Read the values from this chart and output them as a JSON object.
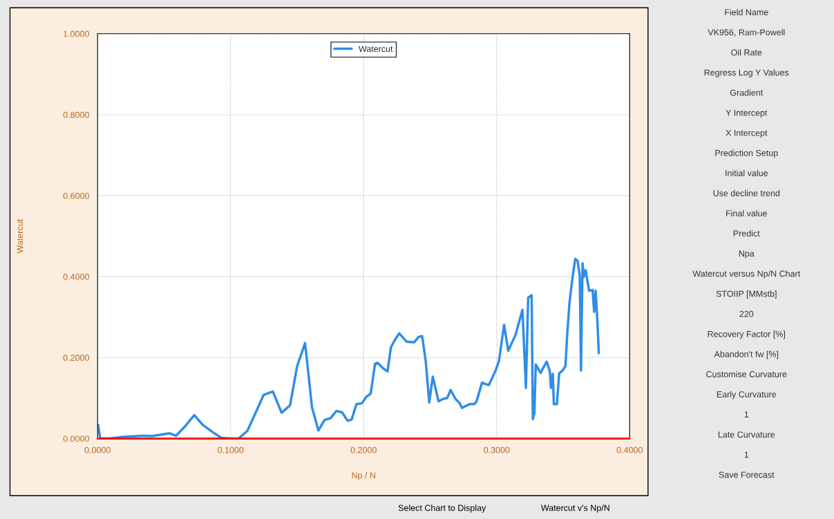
{
  "chart_data": {
    "type": "line",
    "xlabel": "Np / N",
    "ylabel": "Watercut",
    "xlim": [
      0,
      0.4
    ],
    "ylim": [
      0,
      1.0
    ],
    "xticks": [
      {
        "value": 0,
        "label": "0.0000"
      },
      {
        "value": 0.1,
        "label": "0.1000"
      },
      {
        "value": 0.2,
        "label": "0.2000"
      },
      {
        "value": 0.3,
        "label": "0.3000"
      },
      {
        "value": 0.4,
        "label": "0.4000"
      }
    ],
    "yticks": [
      {
        "value": 0,
        "label": "0.0000"
      },
      {
        "value": 0.2,
        "label": "0.2000"
      },
      {
        "value": 0.4,
        "label": "0.4000"
      },
      {
        "value": 0.6,
        "label": "0.6000"
      },
      {
        "value": 0.8,
        "label": "0.8000"
      },
      {
        "value": 1.0,
        "label": "1.0000"
      }
    ],
    "grid": true,
    "legend": "top",
    "line_style": "solid",
    "series": [
      {
        "name": "Watercut",
        "color": "#2f8ee5",
        "x": [
          0.0004,
          0.002,
          0.009,
          0.0185,
          0.034,
          0.041,
          0.054,
          0.059,
          0.066,
          0.0727,
          0.079,
          0.086,
          0.093,
          0.0997,
          0.106,
          0.1126,
          0.119,
          0.1249,
          0.129,
          0.1318,
          0.1383,
          0.1447,
          0.15,
          0.156,
          0.1612,
          0.166,
          0.1707,
          0.175,
          0.1795,
          0.1837,
          0.188,
          0.191,
          0.1946,
          0.1987,
          0.202,
          0.2053,
          0.2086,
          0.2105,
          0.2148,
          0.218,
          0.2205,
          0.2234,
          0.2268,
          0.2324,
          0.238,
          0.2414,
          0.244,
          0.2467,
          0.2493,
          0.252,
          0.2563,
          0.2597,
          0.2628,
          0.2654,
          0.2692,
          0.2718,
          0.274,
          0.2796,
          0.2831,
          0.2848,
          0.289,
          0.2941,
          0.296,
          0.2993,
          0.3017,
          0.3056,
          0.3087,
          0.3142,
          0.3194,
          0.322,
          0.3237,
          0.3263,
          0.3272,
          0.3284,
          0.3294,
          0.333,
          0.3349,
          0.3376,
          0.34,
          0.3408,
          0.3422,
          0.343,
          0.3453,
          0.347,
          0.3496,
          0.3517,
          0.3531,
          0.3548,
          0.357,
          0.3591,
          0.3608,
          0.3625,
          0.3634,
          0.3646,
          0.3655,
          0.3669,
          0.3695,
          0.3721,
          0.3733,
          0.3744,
          0.3756,
          0.3768
        ],
        "values": [
          0.034,
          0.0,
          0.0,
          0.004,
          0.007,
          0.006,
          0.013,
          0.007,
          0.031,
          0.058,
          0.034,
          0.017,
          0.002,
          0.0,
          0.0,
          0.019,
          0.065,
          0.108,
          0.113,
          0.116,
          0.064,
          0.082,
          0.179,
          0.236,
          0.077,
          0.02,
          0.046,
          0.05,
          0.068,
          0.065,
          0.044,
          0.047,
          0.085,
          0.087,
          0.103,
          0.111,
          0.185,
          0.187,
          0.173,
          0.166,
          0.225,
          0.243,
          0.26,
          0.239,
          0.238,
          0.251,
          0.253,
          0.191,
          0.089,
          0.153,
          0.092,
          0.098,
          0.1,
          0.12,
          0.097,
          0.089,
          0.076,
          0.085,
          0.085,
          0.091,
          0.138,
          0.132,
          0.145,
          0.169,
          0.191,
          0.281,
          0.217,
          0.256,
          0.318,
          0.125,
          0.348,
          0.354,
          0.048,
          0.063,
          0.183,
          0.162,
          0.174,
          0.19,
          0.166,
          0.125,
          0.16,
          0.085,
          0.085,
          0.161,
          0.168,
          0.179,
          0.26,
          0.337,
          0.397,
          0.444,
          0.439,
          0.402,
          0.168,
          0.433,
          0.399,
          0.416,
          0.365,
          0.367,
          0.313,
          0.365,
          0.299,
          0.211
        ]
      }
    ],
    "ref_lines": [
      {
        "axis": "y",
        "value": 0,
        "color": "#ff0000"
      }
    ],
    "annotations": [
      "Field Name",
      "VK956, Ram-Powell",
      "Oil Rate",
      "Regress Log Y Values",
      "Gradient",
      "Y Intercept",
      "X Intercept",
      "Prediction Setup",
      "Initial value",
      "Use decline trend",
      "Final value",
      "Predict",
      "Npa",
      "Watercut versus Np/N Chart",
      "STOIIP [MMstb]",
      "220",
      "Recovery Factor [%]",
      "Abandon't fw [%]",
      "Customise Curvature",
      "Early Curvature",
      "1",
      "Late Curvature",
      "1",
      "Save Forecast",
      "Select Chart to Display",
      "Watercut v's Np/N"
    ]
  }
}
